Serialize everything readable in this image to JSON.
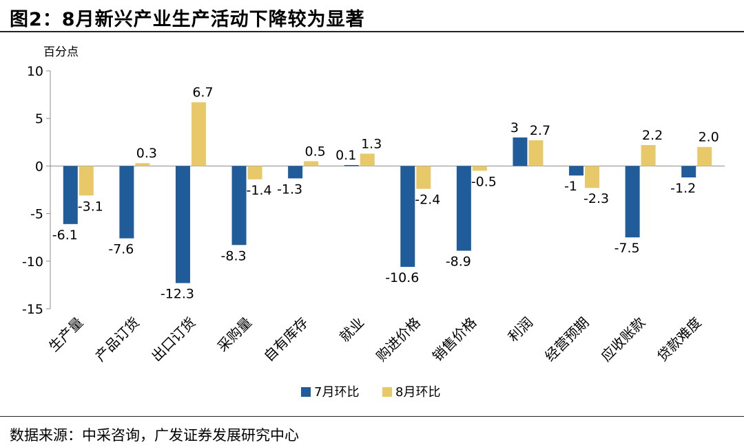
{
  "title": "图2：8月新兴产业生产活动下降较为显著",
  "source": "数据来源：中采咨询，广发证券发展研究中心",
  "chart_data": {
    "type": "bar",
    "ylabel": "百分点",
    "ylim": [
      -15,
      10
    ],
    "yticks": [
      10,
      5,
      0,
      -5,
      -10,
      -15
    ],
    "categories": [
      "生产量",
      "产品订货",
      "出口订货",
      "采购量",
      "自有库存",
      "就业",
      "购进价格",
      "销售价格",
      "利润",
      "经营预期",
      "应收账款",
      "贷款难度"
    ],
    "series": [
      {
        "name": "7月环比",
        "color": "#1F5C99",
        "values": [
          -6.1,
          -7.6,
          -12.3,
          -8.3,
          -1.3,
          0.1,
          -10.6,
          -8.9,
          3,
          -1,
          -7.5,
          -1.2
        ],
        "labels": [
          "-6.1",
          "-7.6",
          "-12.3",
          "-8.3",
          "-1.3",
          "0.1",
          "-10.6",
          "-8.9",
          "3",
          "-1",
          "-7.5",
          "-1.2"
        ]
      },
      {
        "name": "8月环比",
        "color": "#E8C96A",
        "values": [
          -3.1,
          0.3,
          6.7,
          -1.4,
          0.5,
          1.3,
          -2.4,
          -0.5,
          2.7,
          -2.3,
          2.2,
          2.0
        ],
        "labels": [
          "-3.1",
          "0.3",
          "6.7",
          "-1.4",
          "0.5",
          "1.3",
          "-2.4",
          "-0.5",
          "2.7",
          "-2.3",
          "2.2",
          "2.0"
        ]
      }
    ],
    "legend_position": "bottom"
  }
}
